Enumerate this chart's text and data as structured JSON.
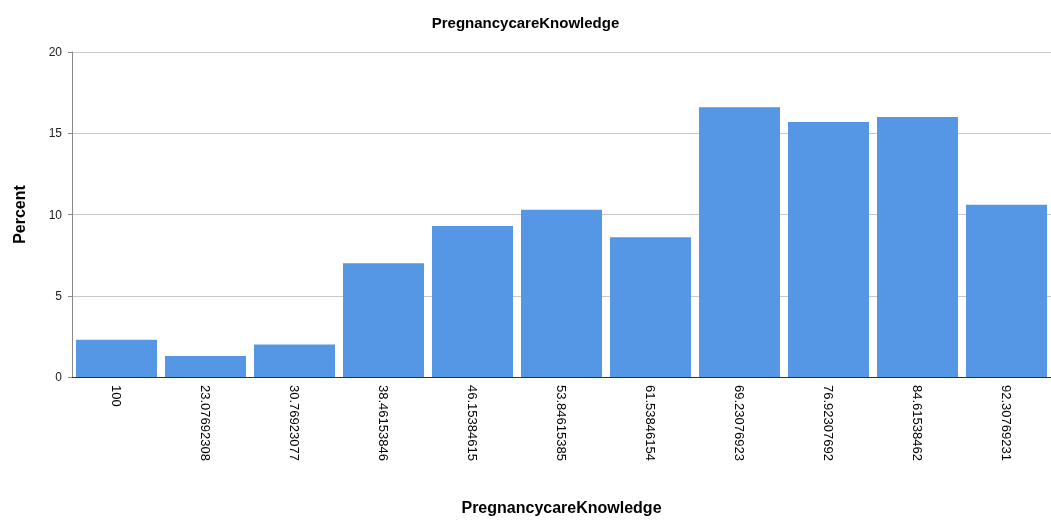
{
  "chart_data": {
    "type": "bar",
    "title": "PregnancycareKnowledge",
    "xlabel": "PregnancycareKnowledge",
    "ylabel": "Percent",
    "categories": [
      "100",
      "23.07692308",
      "30.76923077",
      "38.46153846",
      "46.15384615",
      "53.84615385",
      "61.53846154",
      "69.23076923",
      "76.92307692",
      "84.61538462",
      "92.30769231"
    ],
    "values": [
      2.3,
      1.3,
      2.0,
      7.0,
      9.3,
      10.3,
      8.6,
      16.6,
      15.7,
      16.0,
      10.6
    ],
    "color": "#5596e5",
    "ylim": [
      0,
      20
    ],
    "yticks": [
      0,
      5,
      10,
      15,
      20
    ],
    "grid": "y"
  }
}
